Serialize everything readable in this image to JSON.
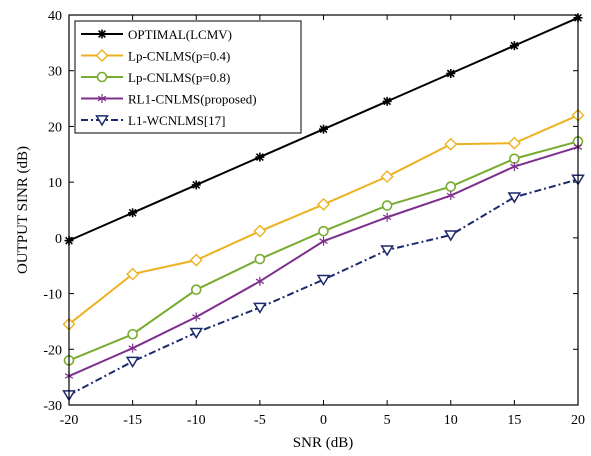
{
  "chart_data": {
    "type": "line",
    "xlabel": "SNR (dB)",
    "ylabel": "OUTPUT SINR (dB)",
    "xlim": [
      -20,
      20
    ],
    "ylim": [
      -30,
      40
    ],
    "x": [
      -20,
      -15,
      -10,
      -5,
      0,
      5,
      10,
      15,
      20
    ],
    "xticks": [
      "-20",
      "-15",
      "-10",
      "-5",
      "0",
      "5",
      "10",
      "15",
      "20"
    ],
    "yticks": [
      "-30",
      "-20",
      "-10",
      "0",
      "10",
      "20",
      "30",
      "40"
    ],
    "grid": false,
    "legend_position": "top-left",
    "series": [
      {
        "name": "OPTIMAL(LCMV)",
        "color": "#000000",
        "marker": "star",
        "dash": "solid",
        "values": [
          -0.5,
          4.5,
          9.5,
          14.5,
          19.5,
          24.5,
          29.5,
          34.5,
          39.5
        ]
      },
      {
        "name": "Lp-CNLMS(p=0.4)",
        "color": "#EDB120",
        "marker": "diamond",
        "dash": "solid",
        "values": [
          -15.5,
          -6.5,
          -4.0,
          1.2,
          6.0,
          11.0,
          16.8,
          17.0,
          22.0
        ]
      },
      {
        "name": "Lp-CNLMS(p=0.8)",
        "color": "#77AC30",
        "marker": "circle",
        "dash": "solid",
        "values": [
          -22.0,
          -17.3,
          -9.3,
          -3.8,
          1.2,
          5.8,
          9.2,
          14.2,
          17.3
        ]
      },
      {
        "name": "RL1-CNLMS(proposed)",
        "color": "#7E2F8E",
        "marker": "asterisk",
        "dash": "solid",
        "values": [
          -24.8,
          -19.8,
          -14.2,
          -7.8,
          -0.6,
          3.7,
          7.6,
          12.8,
          16.3
        ]
      },
      {
        "name": "L1-WCNLMS[17]",
        "color": "#1B2A6B",
        "marker": "triangle-down",
        "dash": "dashdot",
        "values": [
          -28.2,
          -22.2,
          -17.0,
          -12.5,
          -7.5,
          -2.2,
          0.5,
          7.3,
          10.5
        ]
      }
    ]
  }
}
